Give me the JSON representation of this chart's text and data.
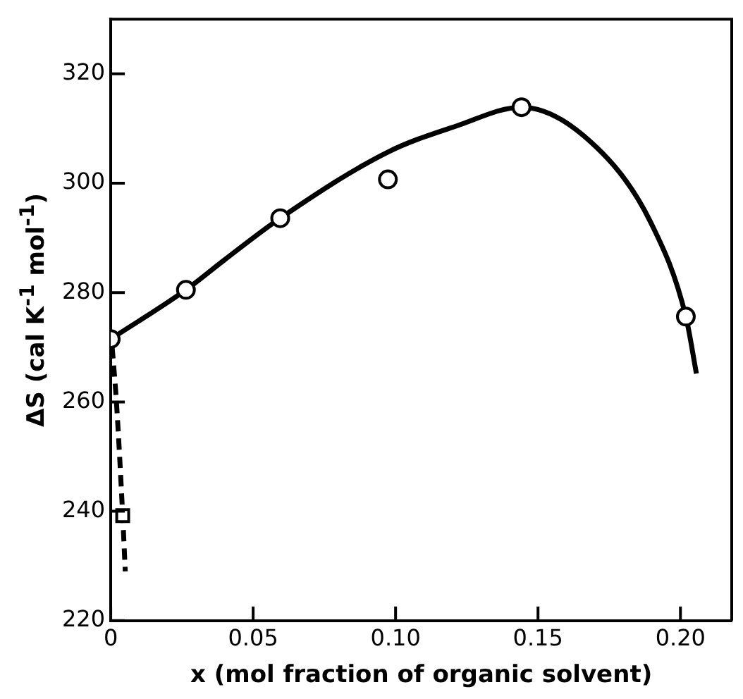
{
  "chart_data": {
    "type": "scatter",
    "xlabel": "x (mol fraction of organic solvent)",
    "ylabel": "ΔS (cal K$^{-1}$ mol$^{-1}$)",
    "xlim": [
      0,
      0.218
    ],
    "ylim": [
      220,
      330
    ],
    "xticks": [
      0,
      0.05,
      {
        "value": 0.1,
        "label": "0.10"
      },
      0.15,
      {
        "value": 0.2,
        "label": "0.20"
      }
    ],
    "yticks": [
      220,
      240,
      260,
      280,
      300,
      320
    ],
    "grid": false,
    "legend": false,
    "series": [
      {
        "type": "line",
        "color": "#000000",
        "marker": "none",
        "line_style": "solid",
        "x": [
          0,
          0.0264,
          0.04,
          0.0595,
          0.0973,
          0.1216,
          0.1442,
          0.1726,
          0.1896,
          0.2019,
          0.2056
        ],
        "values": [
          271.5,
          280.5,
          286,
          293.6,
          305.7,
          310.5,
          313.9,
          305.5,
          292.8,
          275.6,
          265.2
        ]
      },
      {
        "type": "line",
        "color": "#000000",
        "marker": "none",
        "line_style": "dashed",
        "x": [
          0.0005,
          0.002,
          0.0042,
          0.0051
        ],
        "values": [
          270,
          260,
          239.2,
          229
        ]
      },
      {
        "color": "#000000",
        "marker": "circle",
        "x": [
          0,
          0.0264,
          0.0595,
          0.0973,
          0.1442,
          0.2019
        ],
        "values": [
          271.5,
          280.5,
          293.6,
          300.7,
          313.9,
          275.6
        ]
      },
      {
        "color": "#000000",
        "marker": "square",
        "x": [
          0.0042
        ],
        "values": [
          239.2
        ]
      }
    ]
  }
}
